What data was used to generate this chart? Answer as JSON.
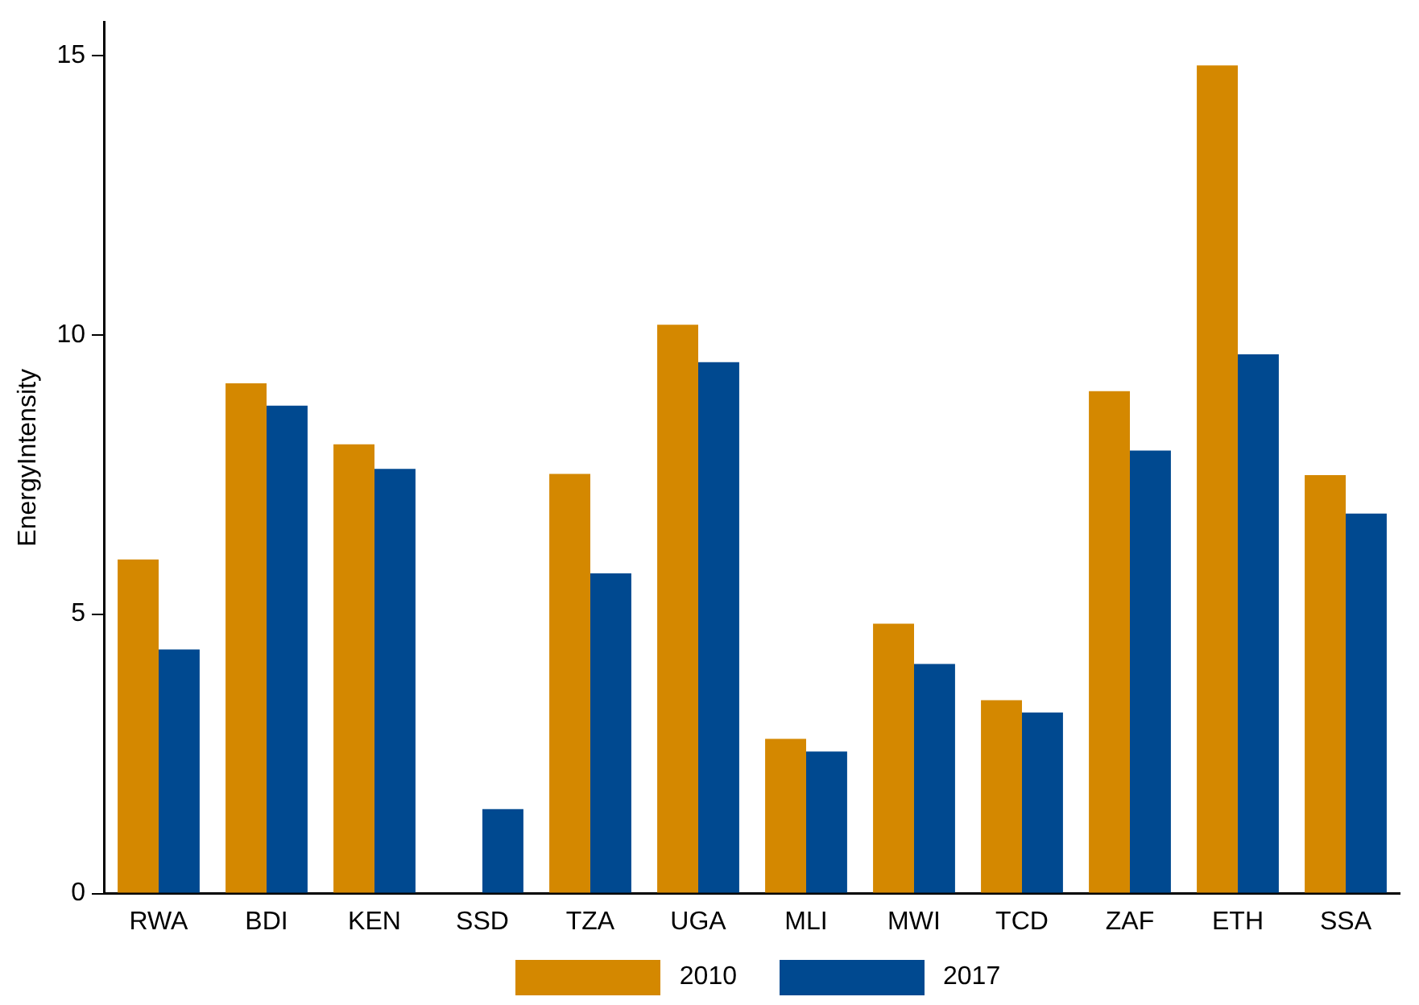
{
  "chart_data": {
    "type": "bar",
    "ylabel": "EnergyIntensity",
    "categories": [
      "RWA",
      "BDI",
      "KEN",
      "SSD",
      "TZA",
      "UGA",
      "MLI",
      "MWI",
      "TCD",
      "ZAF",
      "ETH",
      "SSA"
    ],
    "series": [
      {
        "name": "2010",
        "color": "#d48800",
        "values": [
          5.98,
          9.13,
          8.04,
          null,
          7.51,
          10.18,
          2.77,
          4.83,
          3.46,
          8.99,
          14.82,
          7.49
        ]
      },
      {
        "name": "2017",
        "color": "#004990",
        "values": [
          4.37,
          8.73,
          7.6,
          1.51,
          5.73,
          9.51,
          2.54,
          4.11,
          3.24,
          7.93,
          9.65,
          6.8
        ]
      }
    ],
    "ylim": [
      0,
      15.6
    ],
    "yticks": [
      0,
      5,
      10,
      15
    ],
    "grid": false,
    "legend": "bottom"
  }
}
